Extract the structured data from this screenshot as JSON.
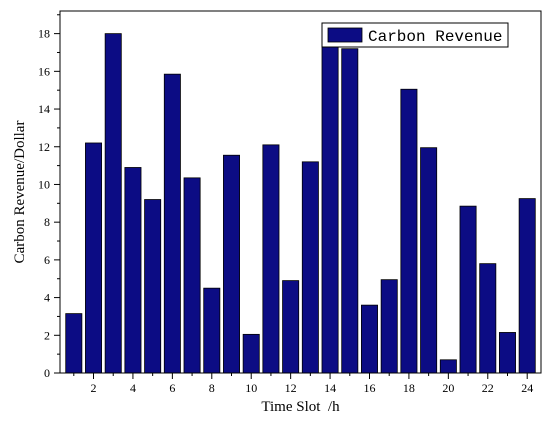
{
  "chart_data": {
    "type": "bar",
    "categories": [
      1,
      2,
      3,
      4,
      5,
      6,
      7,
      8,
      9,
      10,
      11,
      12,
      13,
      14,
      15,
      16,
      17,
      18,
      19,
      20,
      21,
      22,
      23,
      24
    ],
    "series": [
      {
        "name": "Carbon Revenue",
        "values": [
          3.15,
          12.2,
          18.0,
          10.9,
          9.2,
          15.85,
          10.35,
          4.5,
          11.55,
          2.05,
          12.1,
          4.9,
          11.2,
          17.4,
          17.2,
          3.6,
          4.95,
          15.05,
          11.95,
          0.7,
          8.85,
          5.8,
          2.15,
          9.25
        ]
      }
    ],
    "title": "",
    "xlabel": "Time Slot  /h",
    "ylabel": "Carbon Revenue/Dollar",
    "xticks": [
      2,
      4,
      6,
      8,
      10,
      12,
      14,
      16,
      18,
      20,
      22,
      24
    ],
    "yticks": [
      0,
      2,
      4,
      6,
      8,
      10,
      12,
      14,
      16,
      18
    ],
    "ylim": [
      0,
      19.2
    ],
    "xlim": [
      0.3,
      24.7
    ],
    "grid": false,
    "legend_position": "top-right",
    "colors": {
      "bar": "#0c0c84",
      "bar_edge": "#000000",
      "axis": "#000000",
      "background": "#ffffff"
    }
  }
}
